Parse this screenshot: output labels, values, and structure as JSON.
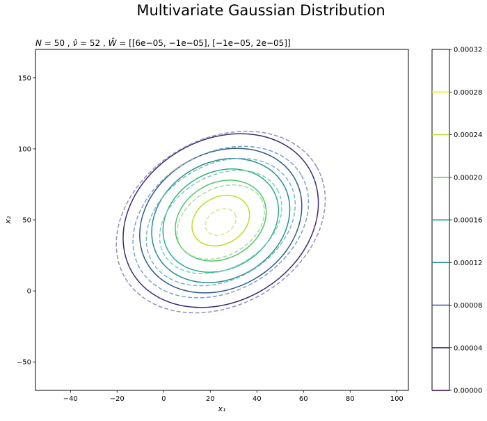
{
  "figure": {
    "suptitle": "Multivariate Gaussian Distribution"
  },
  "chart_data": {
    "type": "contour",
    "title": "N = 50, ν̂ = 52, Ŵ = [[6e−05, −1e−05], [−1e−05, 2e−05]]",
    "title_parts": {
      "n_label": "N",
      "n_value": "50",
      "nu_label": "ν̂",
      "nu_value": "52",
      "w_label": "Ŵ",
      "w_value": "[[6e−05, −1e−05], [−1e−05, 2e−05]]"
    },
    "xlabel": "x₁",
    "ylabel": "x₂",
    "xlim": [
      -55,
      105
    ],
    "ylim": [
      -70,
      170
    ],
    "xticks": [
      -40,
      -20,
      0,
      20,
      40,
      60,
      80,
      100
    ],
    "yticks": [
      -50,
      0,
      50,
      100,
      150
    ],
    "grid": false,
    "colorbar": {
      "range": [
        0.0,
        0.00032
      ],
      "ticks": [
        "0.00000",
        "0.00004",
        "0.00008",
        "0.00012",
        "0.00016",
        "0.00020",
        "0.00024",
        "0.00028",
        "0.00032"
      ],
      "line_levels": [
        0.0,
        4e-05,
        8e-05,
        0.00012,
        0.00016,
        0.0002,
        0.00024,
        0.00028
      ]
    },
    "series": [
      {
        "style": "solid",
        "center": [
          24.5,
          49.5
        ],
        "contours": [
          {
            "level": 4e-05,
            "color": "#3b2c74",
            "rx": 44,
            "ry": 57,
            "angle_deg": -30
          },
          {
            "level": 8e-05,
            "color": "#30578c",
            "rx": 36.5,
            "ry": 47.5,
            "angle_deg": -30
          },
          {
            "level": 0.00012,
            "color": "#218e8c",
            "rx": 31,
            "ry": 41,
            "angle_deg": -30
          },
          {
            "level": 0.00016,
            "color": "#2ab07f",
            "rx": 26,
            "ry": 34,
            "angle_deg": -30
          },
          {
            "level": 0.0002,
            "color": "#52c569",
            "rx": 20.5,
            "ry": 26.5,
            "angle_deg": -30
          },
          {
            "level": 0.00024,
            "color": "#bbdf26",
            "rx": 13,
            "ry": 16.5,
            "angle_deg": -30
          }
        ]
      },
      {
        "style": "dashed",
        "center": [
          24.5,
          48.5
        ],
        "contours": [
          {
            "level": 4e-05,
            "color": "#9a89bf",
            "rx": 47.5,
            "ry": 58.5,
            "angle_deg": -30
          },
          {
            "level": 8e-05,
            "color": "#7e9fbd",
            "rx": 40,
            "ry": 48.5,
            "angle_deg": -30
          },
          {
            "level": 0.00012,
            "color": "#78b6c2",
            "rx": 34,
            "ry": 40.5,
            "angle_deg": -30
          },
          {
            "level": 0.00016,
            "color": "#7fcfb8",
            "rx": 28,
            "ry": 32.5,
            "angle_deg": -30
          },
          {
            "level": 0.0002,
            "color": "#a4dba0",
            "rx": 20,
            "ry": 23.5,
            "angle_deg": -30
          },
          {
            "level": 0.00024,
            "color": "#d4e88a",
            "rx": 7,
            "ry": 8.5,
            "angle_deg": -30
          }
        ]
      }
    ]
  },
  "colors": {
    "colormap": [
      "#440154",
      "#3b2c74",
      "#30578c",
      "#218e8c",
      "#2ab07f",
      "#52c569",
      "#bbdf26",
      "#fde725"
    ],
    "axes": "#000000",
    "background": "#ffffff"
  }
}
